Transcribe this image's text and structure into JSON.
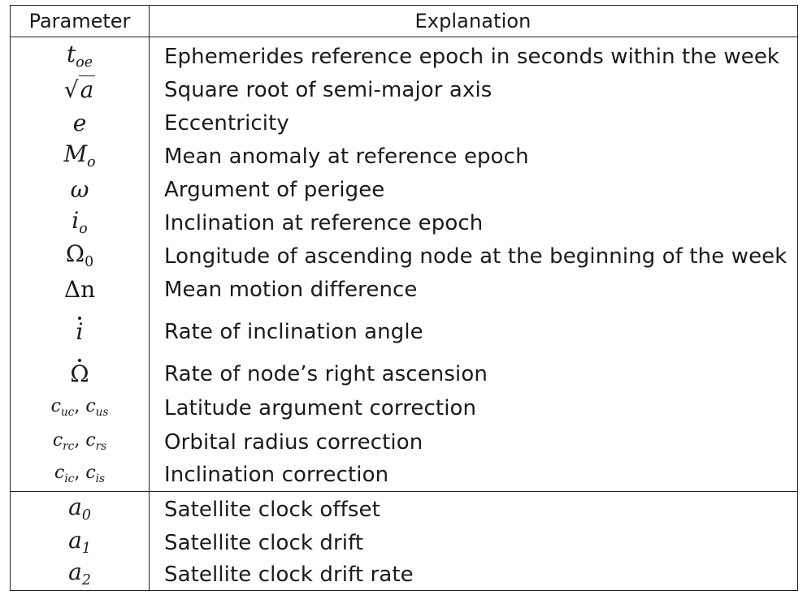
{
  "table": {
    "headers": {
      "parameter": "Parameter",
      "explanation": "Explanation"
    },
    "rows": [
      {
        "param_base": "t",
        "param_sub": "oe",
        "explanation": "Ephemerides reference epoch in seconds within the week"
      },
      {
        "param_base": "a",
        "param_sub": "",
        "explanation": "Square root of semi-major axis"
      },
      {
        "param_base": "e",
        "param_sub": "",
        "explanation": "Eccentricity"
      },
      {
        "param_base": "M",
        "param_sub": "o",
        "explanation": "Mean anomaly at reference epoch"
      },
      {
        "param_base": "ω",
        "param_sub": "",
        "explanation": "Argument of perigee"
      },
      {
        "param_base": "i",
        "param_sub": "o",
        "explanation": "Inclination at reference epoch"
      },
      {
        "param_base": "Ω",
        "param_sub": "0",
        "explanation": "Longitude of ascending node at the beginning of the week"
      },
      {
        "param_base": "Δn",
        "param_sub": "",
        "explanation": "Mean motion difference"
      },
      {
        "param_base": "i",
        "param_sub": "",
        "explanation": "Rate of inclination angle"
      },
      {
        "param_base": "Ω",
        "param_sub": "",
        "explanation": "Rate of node’s right ascension"
      },
      {
        "param_a": "c",
        "param_a_sub": "uc",
        "param_sep": ", ",
        "param_b": "c",
        "param_b_sub": "us",
        "explanation": "Latitude argument correction"
      },
      {
        "param_a": "c",
        "param_a_sub": "rc",
        "param_sep": ", ",
        "param_b": "c",
        "param_b_sub": "rs",
        "explanation": "Orbital radius correction"
      },
      {
        "param_a": "c",
        "param_a_sub": "ic",
        "param_sep": ", ",
        "param_b": "c",
        "param_b_sub": "is",
        "explanation": "Inclination correction"
      },
      {
        "param_base": "a",
        "param_sub": "0",
        "explanation": "Satellite clock offset"
      },
      {
        "param_base": "a",
        "param_sub": "1",
        "explanation": "Satellite clock drift"
      },
      {
        "param_base": "a",
        "param_sub": "2",
        "explanation": "Satellite clock drift rate"
      }
    ]
  }
}
